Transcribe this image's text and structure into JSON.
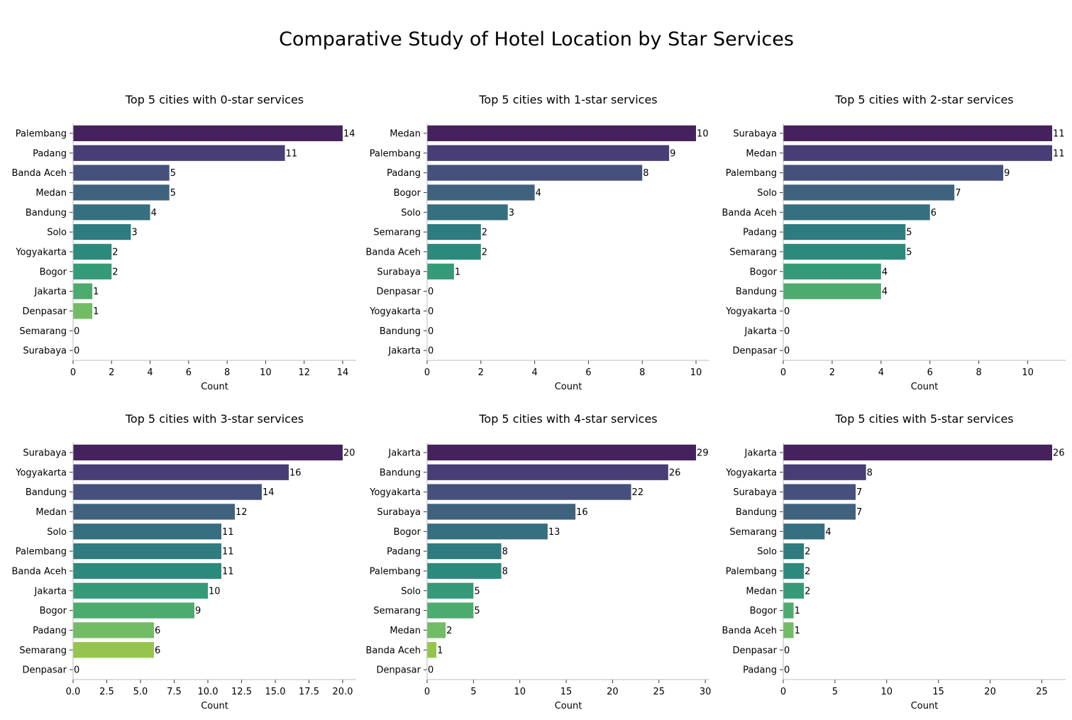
{
  "title": "Comparative Study of Hotel Location by Star Services",
  "palette": [
    "#45225e",
    "#483d75",
    "#46507c",
    "#3f627f",
    "#366f80",
    "#2e7c7f",
    "#2c8a7c",
    "#359a77",
    "#4eab6f",
    "#73bc66",
    "#96c54e",
    "#b9ca3a"
  ],
  "chart_data": [
    {
      "type": "bar",
      "orientation": "horizontal",
      "title": "Top 5 cities with 0-star services",
      "xlabel": "Count",
      "ylabel": "",
      "categories": [
        "Palembang",
        "Padang",
        "Banda Aceh",
        "Medan",
        "Bandung",
        "Solo",
        "Yogyakarta",
        "Bogor",
        "Jakarta",
        "Denpasar",
        "Semarang",
        "Surabaya"
      ],
      "values": [
        14,
        11,
        5,
        5,
        4,
        3,
        2,
        2,
        1,
        1,
        0,
        0
      ],
      "xlim": [
        0,
        14.7
      ],
      "xticks": [
        0,
        2,
        4,
        6,
        8,
        10,
        12,
        14
      ],
      "xtick_labels": [
        "0",
        "2",
        "4",
        "6",
        "8",
        "10",
        "12",
        "14"
      ],
      "grid": false
    },
    {
      "type": "bar",
      "orientation": "horizontal",
      "title": "Top 5 cities with 1-star services",
      "xlabel": "Count",
      "ylabel": "",
      "categories": [
        "Medan",
        "Palembang",
        "Padang",
        "Bogor",
        "Solo",
        "Semarang",
        "Banda Aceh",
        "Surabaya",
        "Denpasar",
        "Yogyakarta",
        "Bandung",
        "Jakarta"
      ],
      "values": [
        10,
        9,
        8,
        4,
        3,
        2,
        2,
        1,
        0,
        0,
        0,
        0
      ],
      "xlim": [
        0,
        10.5
      ],
      "xticks": [
        0,
        2,
        4,
        6,
        8,
        10
      ],
      "xtick_labels": [
        "0",
        "2",
        "4",
        "6",
        "8",
        "10"
      ],
      "grid": false
    },
    {
      "type": "bar",
      "orientation": "horizontal",
      "title": "Top 5 cities with 2-star services",
      "xlabel": "Count",
      "ylabel": "",
      "categories": [
        "Surabaya",
        "Medan",
        "Palembang",
        "Solo",
        "Banda Aceh",
        "Padang",
        "Semarang",
        "Bogor",
        "Bandung",
        "Yogyakarta",
        "Jakarta",
        "Denpasar"
      ],
      "values": [
        11,
        11,
        9,
        7,
        6,
        5,
        5,
        4,
        4,
        0,
        0,
        0
      ],
      "xlim": [
        0,
        11.55
      ],
      "xticks": [
        0,
        2,
        4,
        6,
        8,
        10
      ],
      "xtick_labels": [
        "0",
        "2",
        "4",
        "6",
        "8",
        "10"
      ],
      "grid": false
    },
    {
      "type": "bar",
      "orientation": "horizontal",
      "title": "Top 5 cities with 3-star services",
      "xlabel": "Count",
      "ylabel": "",
      "categories": [
        "Surabaya",
        "Yogyakarta",
        "Bandung",
        "Medan",
        "Solo",
        "Palembang",
        "Banda Aceh",
        "Jakarta",
        "Bogor",
        "Padang",
        "Semarang",
        "Denpasar"
      ],
      "values": [
        20,
        16,
        14,
        12,
        11,
        11,
        11,
        10,
        9,
        6,
        6,
        0
      ],
      "xlim": [
        0,
        21
      ],
      "xticks": [
        0,
        2.5,
        5,
        7.5,
        10,
        12.5,
        15,
        17.5,
        20
      ],
      "xtick_labels": [
        "0.0",
        "2.5",
        "5.0",
        "7.5",
        "10.0",
        "12.5",
        "15.0",
        "17.5",
        "20.0"
      ],
      "grid": false
    },
    {
      "type": "bar",
      "orientation": "horizontal",
      "title": "Top 5 cities with 4-star services",
      "xlabel": "Count",
      "ylabel": "",
      "categories": [
        "Jakarta",
        "Bandung",
        "Yogyakarta",
        "Surabaya",
        "Bogor",
        "Padang",
        "Palembang",
        "Solo",
        "Semarang",
        "Medan",
        "Banda Aceh",
        "Denpasar"
      ],
      "values": [
        29,
        26,
        22,
        16,
        13,
        8,
        8,
        5,
        5,
        2,
        1,
        0
      ],
      "xlim": [
        0,
        30.45
      ],
      "xticks": [
        0,
        5,
        10,
        15,
        20,
        25,
        30
      ],
      "xtick_labels": [
        "0",
        "5",
        "10",
        "15",
        "20",
        "25",
        "30"
      ],
      "grid": false
    },
    {
      "type": "bar",
      "orientation": "horizontal",
      "title": "Top 5 cities with 5-star services",
      "xlabel": "Count",
      "ylabel": "",
      "categories": [
        "Jakarta",
        "Yogyakarta",
        "Surabaya",
        "Bandung",
        "Semarang",
        "Solo",
        "Palembang",
        "Medan",
        "Bogor",
        "Banda Aceh",
        "Denpasar",
        "Padang"
      ],
      "values": [
        26,
        8,
        7,
        7,
        4,
        2,
        2,
        2,
        1,
        1,
        0,
        0
      ],
      "xlim": [
        0,
        27.3
      ],
      "xticks": [
        0,
        5,
        10,
        15,
        20,
        25
      ],
      "xtick_labels": [
        "0",
        "5",
        "10",
        "15",
        "20",
        "25"
      ],
      "grid": false
    }
  ]
}
